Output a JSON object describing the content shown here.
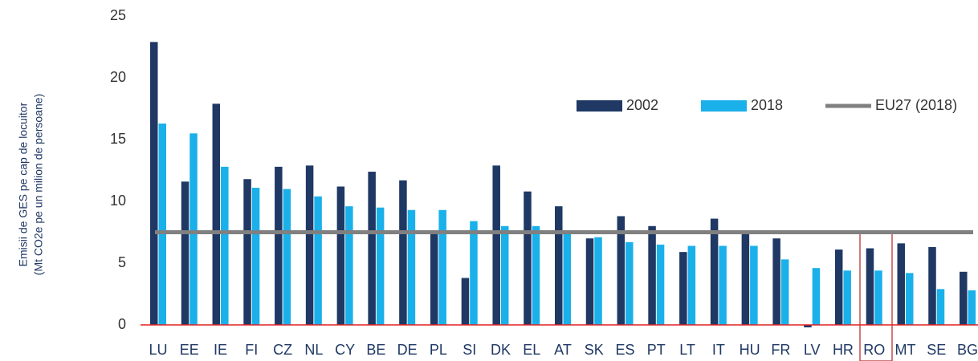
{
  "chart_data": {
    "type": "bar",
    "ylabel": [
      "Emisii de GES pe cap de locuitor",
      "(Mt CO2e pe un milion de persoane)"
    ],
    "categories": [
      "LU",
      "EE",
      "IE",
      "FI",
      "CZ",
      "NL",
      "CY",
      "BE",
      "DE",
      "PL",
      "SI",
      "DK",
      "EL",
      "AT",
      "SK",
      "ES",
      "PT",
      "LT",
      "IT",
      "HU",
      "FR",
      "LV",
      "HR",
      "RO",
      "MT",
      "SE",
      "BG"
    ],
    "series": [
      {
        "name": "2002",
        "color": "#1f3864",
        "values": [
          22.9,
          11.6,
          17.9,
          11.8,
          12.8,
          12.9,
          11.2,
          12.4,
          11.7,
          7.5,
          3.8,
          12.9,
          10.8,
          9.6,
          7.0,
          8.8,
          8.0,
          5.9,
          8.6,
          7.5,
          7.0,
          -0.2,
          6.1,
          6.2,
          6.6,
          6.3,
          4.3
        ]
      },
      {
        "name": "2018",
        "color": "#1ab0ea",
        "values": [
          16.3,
          15.5,
          12.8,
          11.1,
          11.0,
          10.4,
          9.6,
          9.5,
          9.3,
          9.3,
          8.4,
          8.0,
          8.0,
          7.6,
          7.1,
          6.7,
          6.5,
          6.4,
          6.4,
          6.4,
          5.3,
          4.6,
          4.4,
          4.4,
          4.2,
          2.9,
          2.8
        ]
      }
    ],
    "reference_lines": [
      {
        "name": "EU27 (2018)",
        "value": 7.5,
        "color": "#808080"
      }
    ],
    "ylim": [
      0,
      25
    ],
    "yticks": [
      0,
      5,
      10,
      15,
      20,
      25
    ],
    "grid": false,
    "legend": "upper right"
  }
}
